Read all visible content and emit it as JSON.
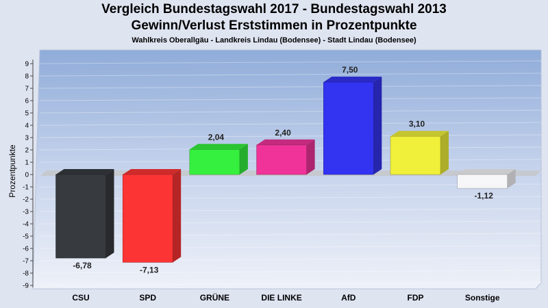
{
  "header": {
    "title_line1": "Vergleich Bundestagswahl 2017 - Bundestagswahl 2013",
    "title_line2": "Gewinn/Verlust Erststimmen in Prozentpunkte",
    "subtitle": "Wahlkreis Oberallgäu - Landkreis Lindau (Bodensee) - Stadt Lindau (Bodensee)"
  },
  "chart_data": {
    "type": "bar",
    "title": "Vergleich Bundestagswahl 2017 - Bundestagswahl 2013 Gewinn/Verlust Erststimmen in Prozentpunkte",
    "subtitle": "Wahlkreis Oberallgäu - Landkreis Lindau (Bodensee) - Stadt Lindau (Bodensee)",
    "xlabel": "",
    "ylabel": "Prozentpunkte",
    "ylim": [
      -9,
      9
    ],
    "ticks": [
      9,
      8,
      7,
      6,
      5,
      4,
      3,
      2,
      1,
      0,
      -1,
      -2,
      -3,
      -4,
      -5,
      -6,
      -7,
      -8,
      -9
    ],
    "categories": [
      "CSU",
      "SPD",
      "GRÜNE",
      "DIE LINKE",
      "AfD",
      "FDP",
      "Sonstige"
    ],
    "values": [
      -6.78,
      -7.13,
      2.04,
      2.4,
      7.5,
      3.1,
      -1.12
    ],
    "value_labels": [
      "-6,78",
      "-7,13",
      "2,04",
      "2,40",
      "7,50",
      "3,10",
      "-1,12"
    ],
    "colors": [
      "#373a3f",
      "#fc3434",
      "#35f03e",
      "#ef3399",
      "#3333f2",
      "#f0f03a",
      "#f6f6f9"
    ],
    "grid": true,
    "legend": "none"
  }
}
